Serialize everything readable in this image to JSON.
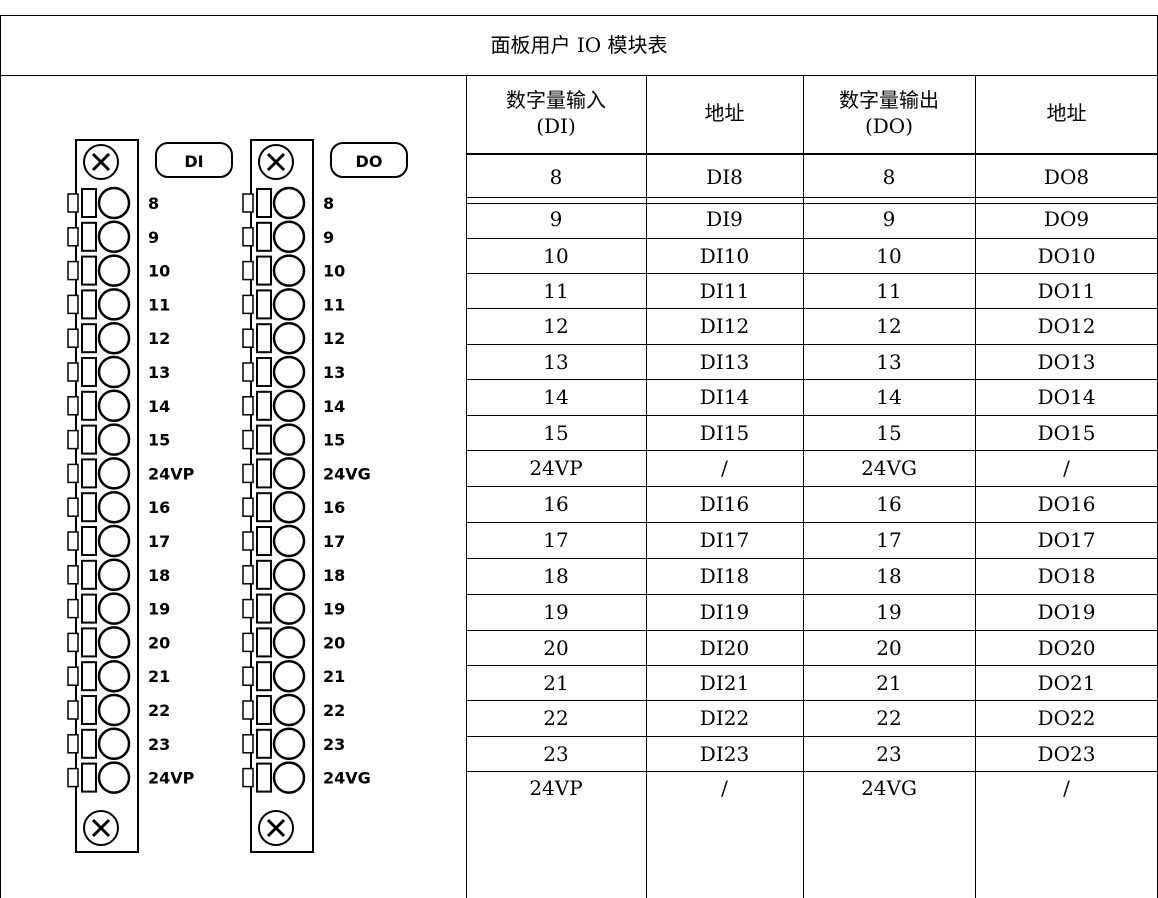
{
  "title_row": "面板用户 IO 模块表",
  "terminals": {
    "di": {
      "tag": "DI",
      "labels": [
        "8",
        "9",
        "10",
        "11",
        "12",
        "13",
        "14",
        "15",
        "24VP",
        "16",
        "17",
        "18",
        "19",
        "20",
        "21",
        "22",
        "23",
        "24VP"
      ]
    },
    "do": {
      "tag": "DO",
      "labels": [
        "8",
        "9",
        "10",
        "11",
        "12",
        "13",
        "14",
        "15",
        "24VG",
        "16",
        "17",
        "18",
        "19",
        "20",
        "21",
        "22",
        "23",
        "24VG"
      ]
    }
  },
  "table": {
    "headers": [
      [
        "数字量输入",
        "(DI)"
      ],
      [
        "地址"
      ],
      [
        "数字量输出",
        "(DO)"
      ],
      [
        "地址"
      ]
    ],
    "rows": [
      [
        "8",
        "DI8",
        "8",
        "DO8"
      ],
      [
        "9",
        "DI9",
        "9",
        "DO9"
      ],
      [
        "10",
        "DI10",
        "10",
        "DO10"
      ],
      [
        "11",
        "DI11",
        "11",
        "DO11"
      ],
      [
        "12",
        "DI12",
        "12",
        "DO12"
      ],
      [
        "13",
        "DI13",
        "13",
        "DO13"
      ],
      [
        "14",
        "DI14",
        "14",
        "DO14"
      ],
      [
        "15",
        "DI15",
        "15",
        "DO15"
      ],
      [
        "24VP",
        "/",
        "24VG",
        "/"
      ],
      [
        "16",
        "DI16",
        "16",
        "DO16"
      ],
      [
        "17",
        "DI17",
        "17",
        "DO17"
      ],
      [
        "18",
        "DI18",
        "18",
        "DO18"
      ],
      [
        "19",
        "DI19",
        "19",
        "DO19"
      ],
      [
        "20",
        "DI20",
        "20",
        "DO20"
      ],
      [
        "21",
        "DI21",
        "21",
        "DO21"
      ],
      [
        "22",
        "DI22",
        "22",
        "DO22"
      ],
      [
        "23",
        "DI23",
        "23",
        "DO23"
      ],
      [
        "24VP",
        "/",
        "24VG",
        "/"
      ]
    ]
  }
}
